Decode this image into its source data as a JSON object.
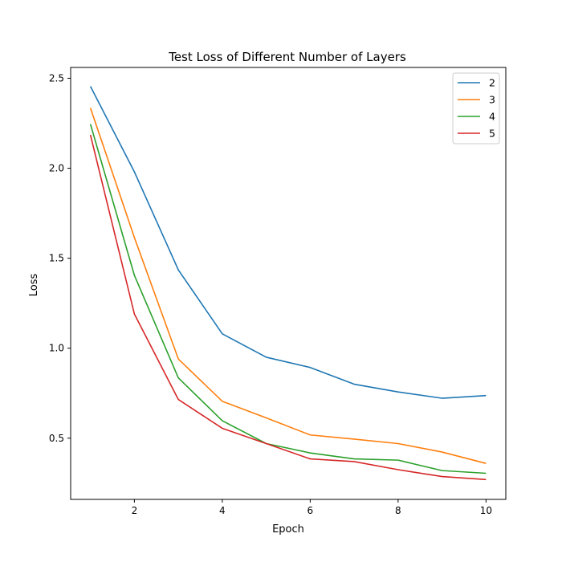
{
  "chart_data": {
    "type": "line",
    "title": "Test Loss of Different Number of Layers",
    "xlabel": "Epoch",
    "ylabel": "Loss",
    "x": [
      1,
      2,
      3,
      4,
      5,
      6,
      7,
      8,
      9,
      10
    ],
    "xticks": [
      2,
      4,
      6,
      8,
      10
    ],
    "yticks": [
      0.5,
      1.0,
      1.5,
      2.0,
      2.5
    ],
    "ytick_labels": [
      "0.5",
      "1.0",
      "1.5",
      "2.0",
      "2.5"
    ],
    "xlim": [
      0.55,
      10.45
    ],
    "ylim": [
      0.16,
      2.56
    ],
    "grid": false,
    "legend_position": "top-right",
    "series": [
      {
        "name": "2",
        "color": "#1f77b4",
        "values": [
          2.455,
          1.98,
          1.435,
          1.08,
          0.95,
          0.893,
          0.8,
          0.757,
          0.722,
          0.737
        ]
      },
      {
        "name": "3",
        "color": "#ff7f0e",
        "values": [
          2.335,
          1.615,
          0.94,
          0.705,
          0.613,
          0.518,
          0.495,
          0.47,
          0.423,
          0.36
        ]
      },
      {
        "name": "4",
        "color": "#2ca02c",
        "values": [
          2.245,
          1.405,
          0.835,
          0.597,
          0.47,
          0.418,
          0.385,
          0.378,
          0.32,
          0.305
        ]
      },
      {
        "name": "5",
        "color": "#d62728",
        "values": [
          2.185,
          1.19,
          0.715,
          0.555,
          0.47,
          0.385,
          0.37,
          0.325,
          0.287,
          0.27
        ]
      }
    ]
  }
}
